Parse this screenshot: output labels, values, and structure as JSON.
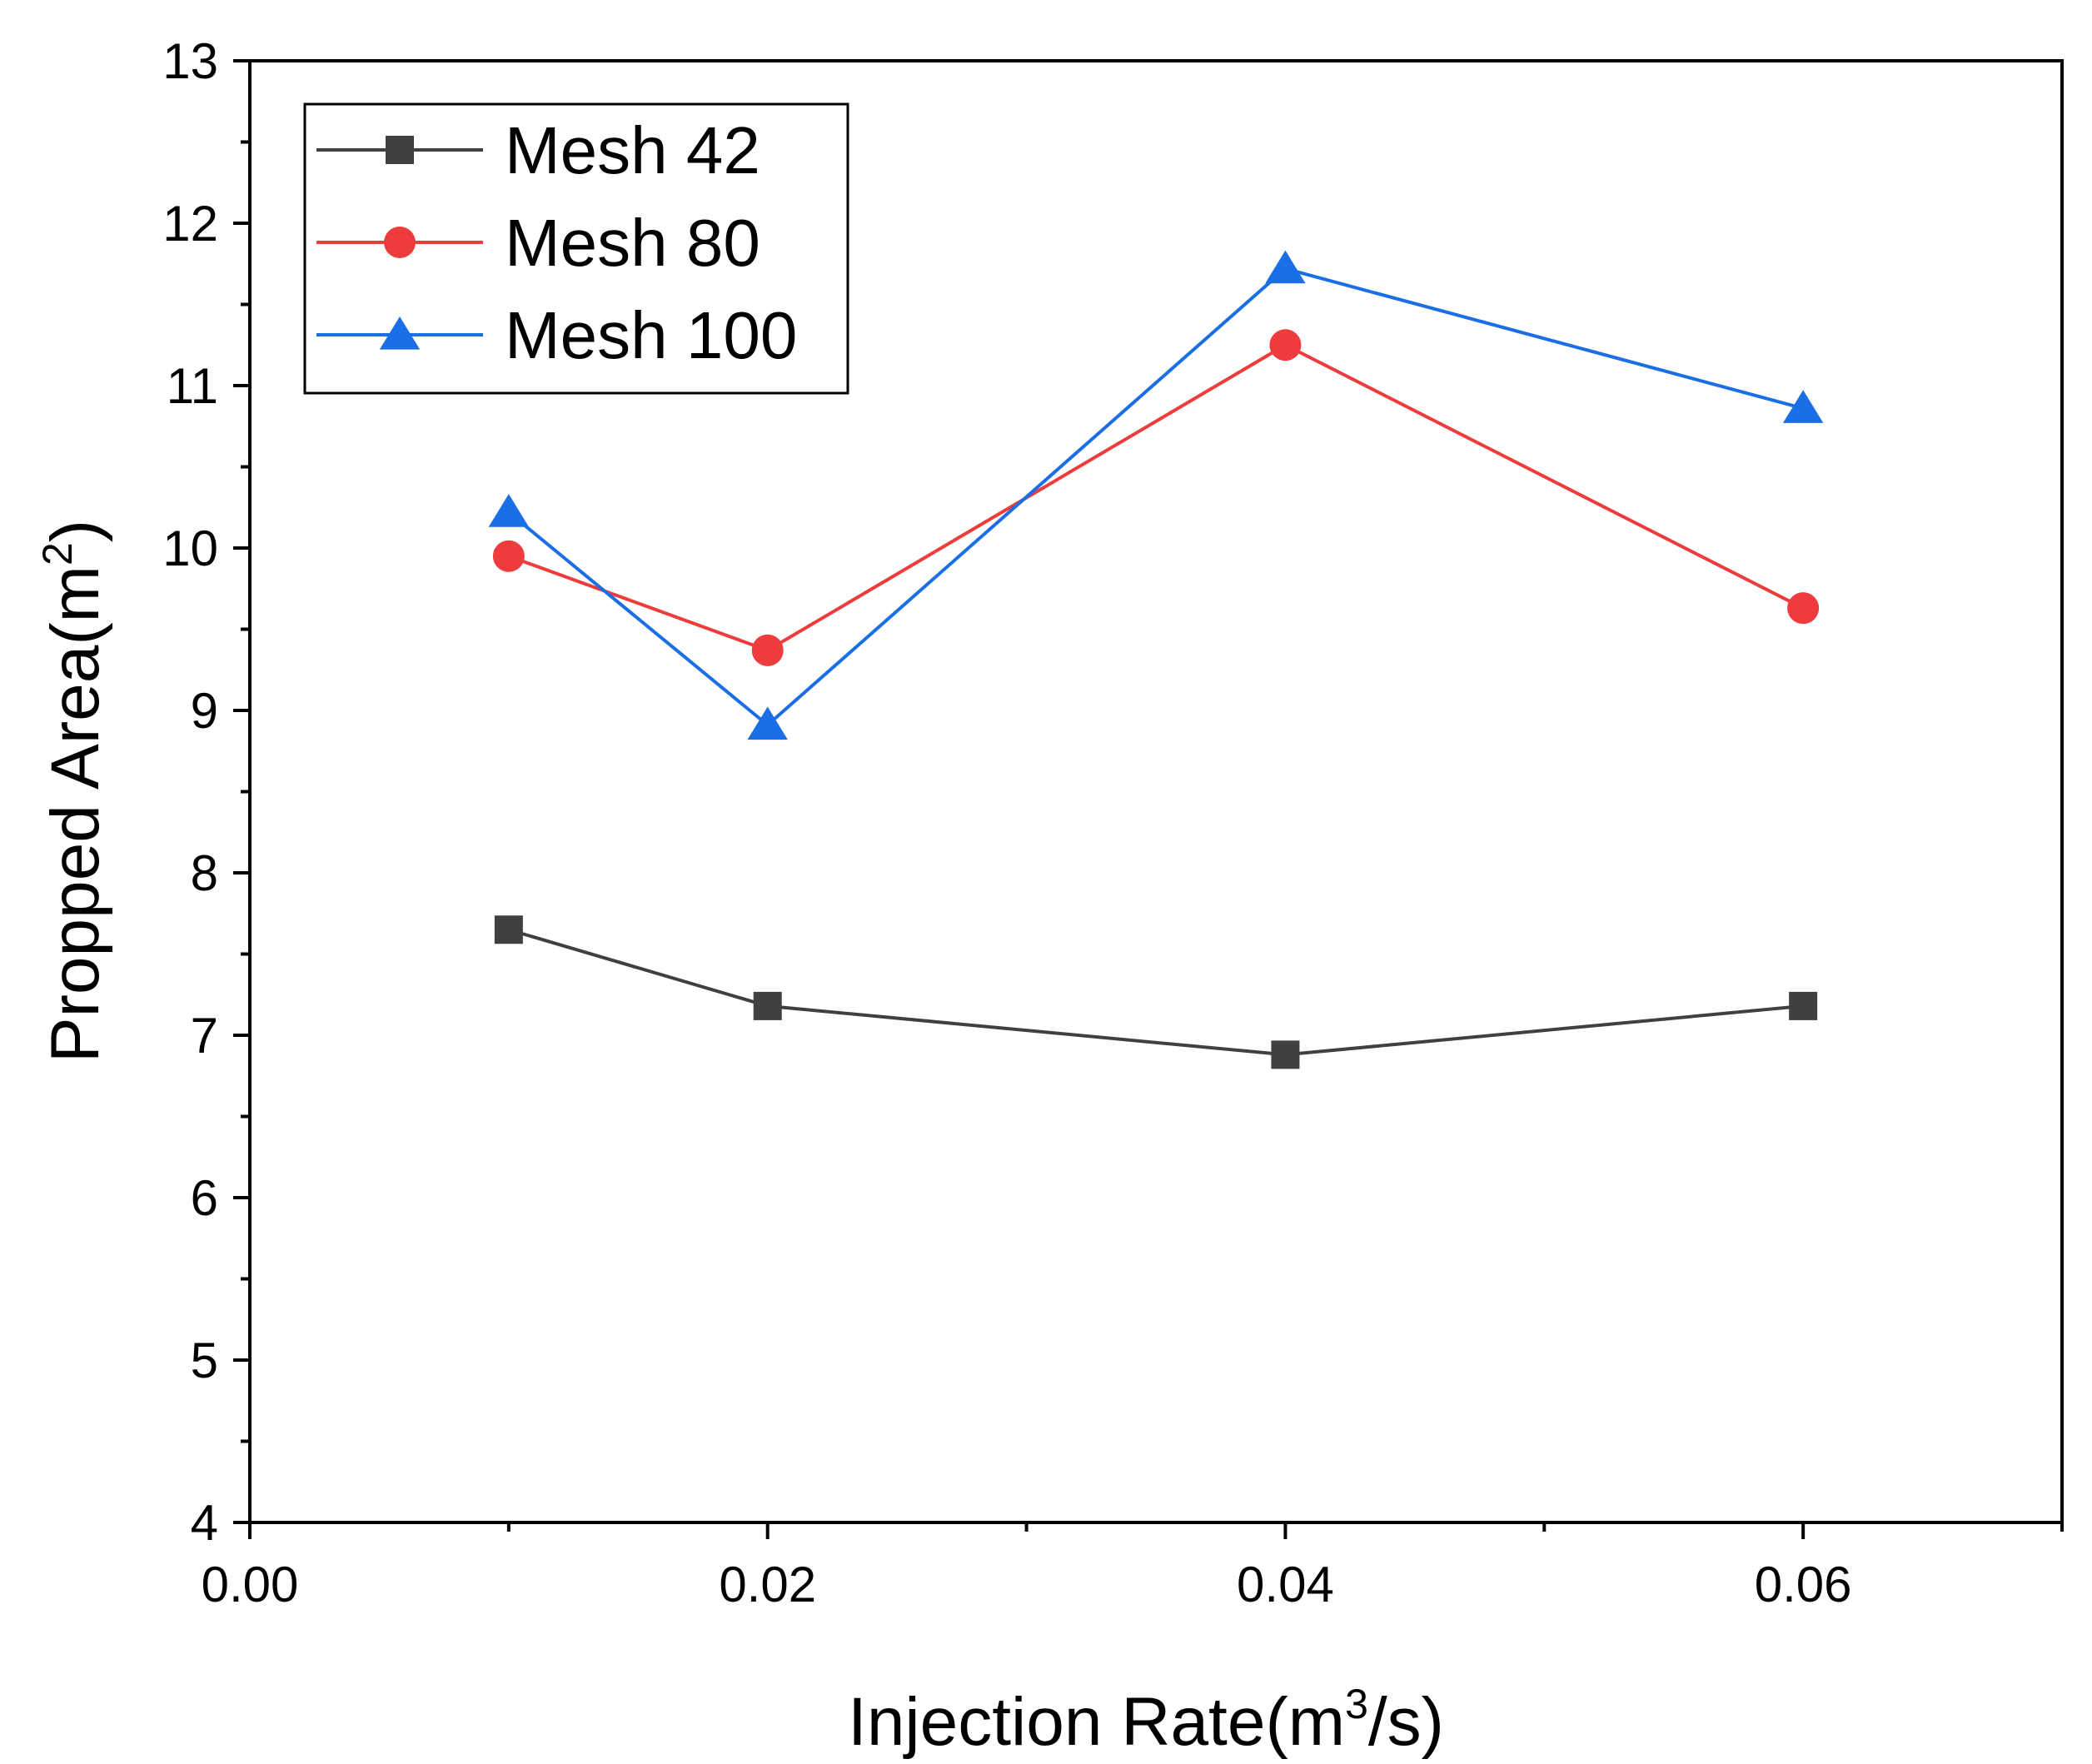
{
  "chart_data": {
    "type": "line",
    "title": "",
    "xlabel": {
      "prefix": "Injection Rate(m",
      "sup": "3",
      "suffix": "/s)"
    },
    "ylabel": {
      "prefix": "Propped Area(m",
      "sup": "2",
      "suffix": ")"
    },
    "xlim": [
      0,
      0.07
    ],
    "ylim": [
      4,
      13
    ],
    "x_ticks": [
      0.0,
      0.02,
      0.04,
      0.06
    ],
    "x_tick_labels": [
      "0.00",
      "0.02",
      "0.04",
      "0.06"
    ],
    "x_minor_ticks": [
      0.01,
      0.03,
      0.05,
      0.07
    ],
    "y_ticks": [
      4,
      5,
      6,
      7,
      8,
      9,
      10,
      11,
      12,
      13
    ],
    "y_tick_labels": [
      "4",
      "5",
      "6",
      "7",
      "8",
      "9",
      "10",
      "11",
      "12",
      "13"
    ],
    "y_minor_ticks": [
      4.5,
      5.5,
      6.5,
      7.5,
      8.5,
      9.5,
      10.5,
      11.5,
      12.5
    ],
    "grid": false,
    "legend_position": "top-left",
    "x": [
      0.01,
      0.02,
      0.04,
      0.06
    ],
    "series": [
      {
        "name": "Mesh 42",
        "values": [
          7.65,
          7.18,
          6.88,
          7.18
        ],
        "color": "#404040",
        "marker": "square"
      },
      {
        "name": "Mesh 80",
        "values": [
          9.95,
          9.37,
          11.25,
          9.63
        ],
        "color": "#ee3b3b",
        "marker": "circle"
      },
      {
        "name": "Mesh 100",
        "values": [
          10.22,
          8.91,
          11.72,
          10.86
        ],
        "color": "#1a6ee6",
        "marker": "triangle"
      }
    ]
  }
}
